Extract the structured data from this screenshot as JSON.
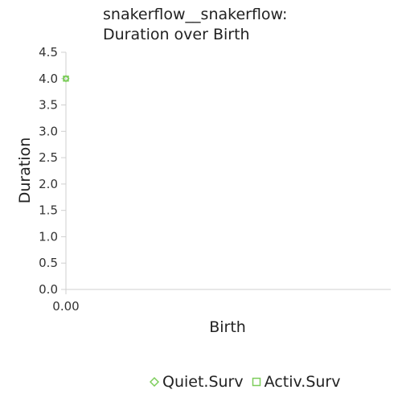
{
  "chart_data": {
    "type": "scatter",
    "title_lines": [
      "snakerflow__snakerflow:",
      "Duration over Birth"
    ],
    "xlabel": "Birth",
    "ylabel": "Duration",
    "x_ticks": [
      "0.00"
    ],
    "y_ticks": [
      "0.0",
      "0.5",
      "1.0",
      "1.5",
      "2.0",
      "2.5",
      "3.0",
      "3.5",
      "4.0",
      "4.5"
    ],
    "ylim": [
      0,
      4.5
    ],
    "xlim": [
      0,
      1
    ],
    "grid": false,
    "legend_placement": "bottom",
    "series": [
      {
        "name": "Quiet.Surv",
        "marker": "diamond",
        "color": "#7ccd5a",
        "points": [
          {
            "x": 0.0,
            "y": 4.0
          }
        ]
      },
      {
        "name": "Activ.Surv",
        "marker": "square",
        "color": "#7ccd5a",
        "points": [
          {
            "x": 0.0,
            "y": 4.0
          }
        ]
      }
    ]
  }
}
